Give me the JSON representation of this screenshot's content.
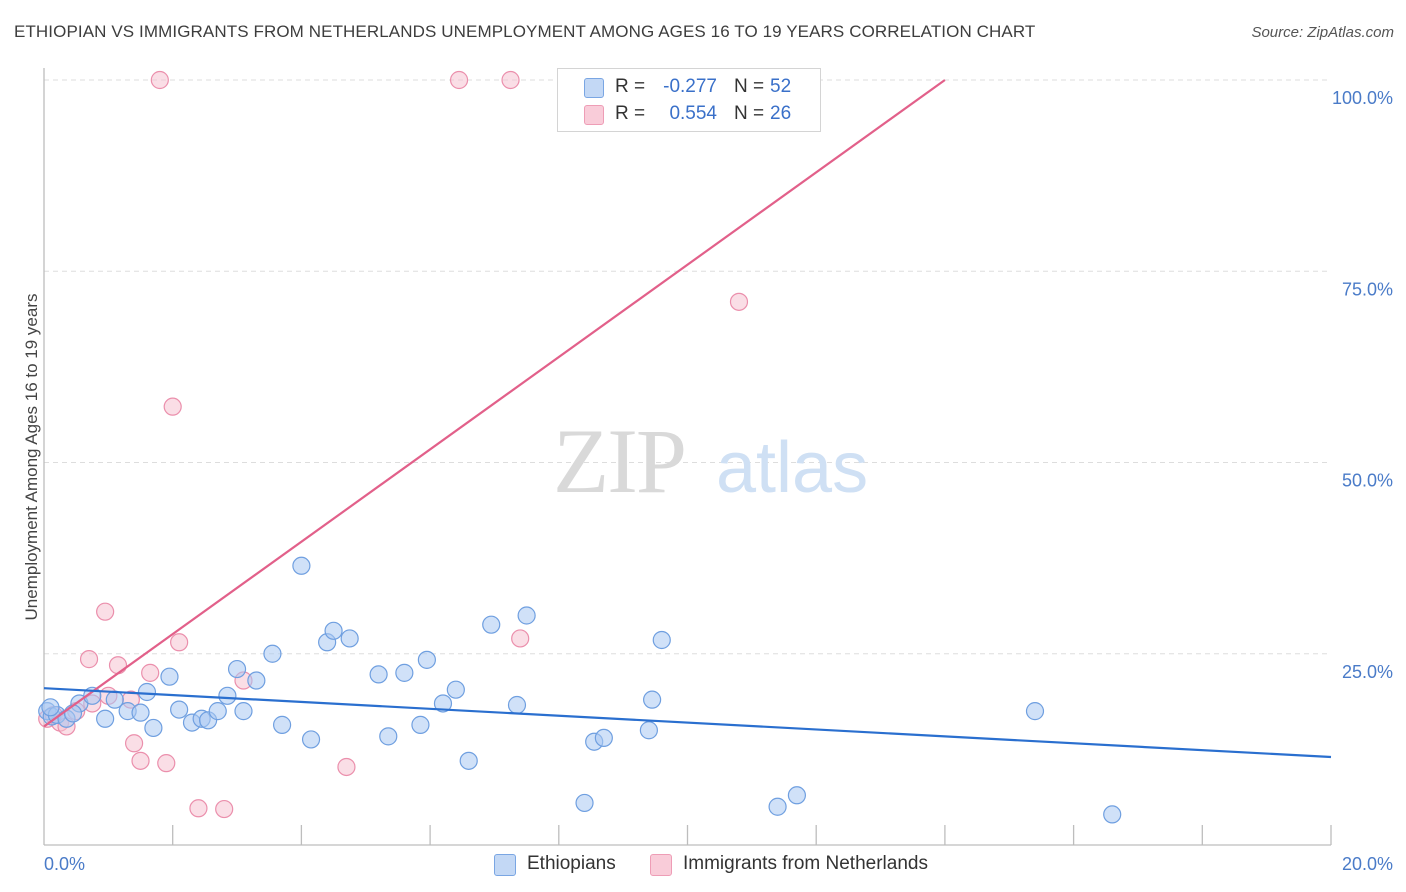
{
  "title": "ETHIOPIAN VS IMMIGRANTS FROM NETHERLANDS UNEMPLOYMENT AMONG AGES 16 TO 19 YEARS CORRELATION CHART",
  "source": "Source: ZipAtlas.com",
  "watermark": {
    "zip": "ZIP",
    "atlas": "atlas"
  },
  "legend_stats": [
    {
      "series": "Ethiopians",
      "r_label": "R =",
      "r_value": "-0.277",
      "n_label": "N =",
      "n_value": "52",
      "color": "#a9c8f2"
    },
    {
      "series": "Immigrants from Netherlands",
      "r_label": "R =",
      "r_value": "0.554",
      "n_label": "N =",
      "n_value": "26",
      "color": "#f6b8cb"
    }
  ],
  "colors": {
    "ethiopians_fill": "#a9c8f2",
    "ethiopians_stroke": "#6f9fe0",
    "ethiopians_line": "#2a6fcf",
    "netherlands_fill": "#f6c3d2",
    "netherlands_stroke": "#eb8fac",
    "netherlands_line": "#e2608a",
    "tick_text": "#4a7bc8",
    "grid": "#dddddd"
  },
  "chart_data": {
    "type": "scatter",
    "title": "ETHIOPIAN VS IMMIGRANTS FROM NETHERLANDS UNEMPLOYMENT AMONG AGES 16 TO 19 YEARS CORRELATION CHART",
    "xlabel": "",
    "ylabel": "Unemployment Among Ages 16 to 19 years",
    "xlim": [
      0,
      20
    ],
    "ylim": [
      0,
      100
    ],
    "x_ticks": [
      "0.0%",
      "20.0%"
    ],
    "y_ticks": [
      "25.0%",
      "50.0%",
      "75.0%",
      "100.0%"
    ],
    "y_tick_values": [
      25,
      50,
      75,
      100
    ],
    "grid": true,
    "legend_position": "bottom",
    "series": [
      {
        "name": "Ethiopians",
        "points": [
          [
            0.05,
            17.5
          ],
          [
            0.12,
            16.8
          ],
          [
            0.2,
            17.0
          ],
          [
            0.35,
            16.5
          ],
          [
            0.55,
            18.5
          ],
          [
            0.75,
            19.5
          ],
          [
            0.95,
            16.5
          ],
          [
            1.1,
            19.0
          ],
          [
            1.3,
            17.5
          ],
          [
            1.5,
            17.3
          ],
          [
            1.6,
            20.0
          ],
          [
            1.7,
            15.3
          ],
          [
            1.95,
            22.0
          ],
          [
            2.1,
            17.7
          ],
          [
            2.3,
            16.0
          ],
          [
            2.45,
            16.5
          ],
          [
            2.55,
            16.3
          ],
          [
            2.7,
            17.5
          ],
          [
            2.85,
            19.5
          ],
          [
            3.0,
            23.0
          ],
          [
            3.1,
            17.5
          ],
          [
            3.3,
            21.5
          ],
          [
            3.55,
            25.0
          ],
          [
            3.7,
            15.7
          ],
          [
            4.0,
            36.5
          ],
          [
            4.15,
            13.8
          ],
          [
            4.4,
            26.5
          ],
          [
            4.5,
            28.0
          ],
          [
            4.75,
            27.0
          ],
          [
            5.2,
            22.3
          ],
          [
            5.35,
            14.2
          ],
          [
            5.6,
            22.5
          ],
          [
            5.85,
            15.7
          ],
          [
            5.95,
            24.2
          ],
          [
            6.2,
            18.5
          ],
          [
            6.4,
            20.3
          ],
          [
            6.6,
            11.0
          ],
          [
            6.95,
            28.8
          ],
          [
            7.35,
            18.3
          ],
          [
            7.5,
            30.0
          ],
          [
            8.4,
            5.5
          ],
          [
            8.55,
            13.5
          ],
          [
            8.7,
            14.0
          ],
          [
            9.4,
            15.0
          ],
          [
            9.45,
            19.0
          ],
          [
            9.6,
            26.8
          ],
          [
            11.4,
            5.0
          ],
          [
            11.7,
            6.5
          ],
          [
            15.4,
            17.5
          ],
          [
            16.6,
            4.0
          ],
          [
            0.1,
            18.0
          ],
          [
            0.45,
            17.2
          ]
        ],
        "trend": {
          "x": [
            0,
            20
          ],
          "y": [
            20.5,
            11.5
          ]
        }
      },
      {
        "name": "Immigrants from Netherlands",
        "points": [
          [
            0.05,
            16.5
          ],
          [
            0.15,
            17.0
          ],
          [
            0.25,
            16.0
          ],
          [
            0.35,
            15.5
          ],
          [
            0.7,
            24.3
          ],
          [
            0.75,
            18.5
          ],
          [
            0.95,
            30.5
          ],
          [
            1.15,
            23.5
          ],
          [
            1.35,
            19.0
          ],
          [
            1.4,
            13.3
          ],
          [
            1.5,
            11.0
          ],
          [
            1.65,
            22.5
          ],
          [
            1.8,
            100.0
          ],
          [
            1.9,
            10.7
          ],
          [
            2.0,
            57.3
          ],
          [
            2.1,
            26.5
          ],
          [
            2.4,
            4.8
          ],
          [
            2.8,
            4.7
          ],
          [
            3.1,
            21.5
          ],
          [
            4.7,
            10.2
          ],
          [
            6.45,
            100.0
          ],
          [
            7.25,
            100.0
          ],
          [
            7.4,
            27.0
          ],
          [
            10.8,
            71.0
          ],
          [
            0.5,
            17.5
          ],
          [
            1.0,
            19.5
          ]
        ],
        "trend": {
          "x": [
            0,
            14.0
          ],
          "y": [
            15.5,
            100
          ]
        }
      }
    ]
  }
}
